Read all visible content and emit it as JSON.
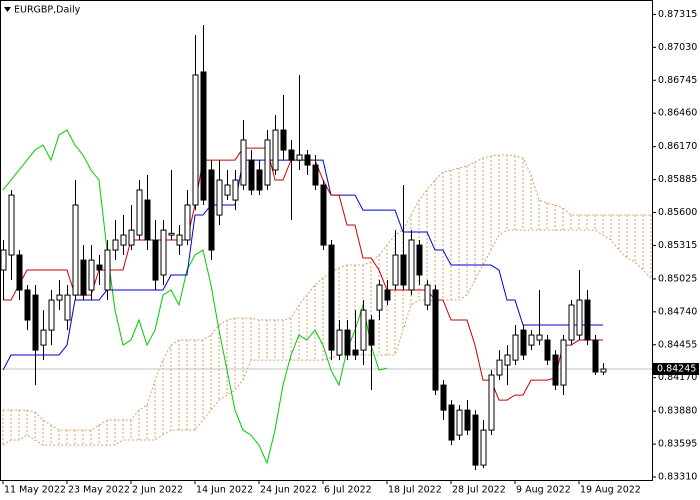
{
  "chart_data": {
    "type": "candlestick",
    "title": "EURGBP,Daily",
    "categories": [
      "11 May 2022",
      null,
      null,
      null,
      null,
      null,
      null,
      null,
      "23 May 2022",
      null,
      null,
      null,
      null,
      null,
      null,
      null,
      "2 Jun 2022",
      null,
      null,
      null,
      null,
      null,
      null,
      null,
      "14 Jun 2022",
      null,
      null,
      null,
      null,
      null,
      null,
      null,
      "24 Jun 2022",
      null,
      null,
      null,
      null,
      null,
      null,
      null,
      "6 Jul 2022",
      null,
      null,
      null,
      null,
      null,
      null,
      null,
      "18 Jul 2022",
      null,
      null,
      null,
      null,
      null,
      null,
      null,
      "28 Jul 2022",
      null,
      null,
      null,
      null,
      null,
      null,
      null,
      "9 Aug 2022",
      null,
      null,
      null,
      null,
      null,
      null,
      null,
      "19 Aug 2022",
      null,
      null,
      null,
      null,
      null,
      null,
      null,
      null,
      null
    ],
    "ohlc": {
      "open": [
        0.85102,
        0.85232,
        0.85232,
        0.84929,
        0.84885,
        0.84452,
        0.84582,
        0.84842,
        0.84669,
        0.84885,
        0.85188,
        0.84929,
        0.85145,
        0.84929,
        0.85275,
        0.85318,
        0.85318,
        0.85405,
        0.85708,
        0.85362,
        0.85059,
        0.85405,
        0.85318,
        0.85362,
        0.85665,
        0.86817,
        0.85968,
        0.85578,
        0.85751,
        0.85708,
        0.85838,
        0.86054,
        0.85968,
        0.85838,
        0.85968,
        0.86314,
        0.86141,
        0.86054,
        0.86098,
        0.86011,
        0.85838,
        0.85318,
        0.84366,
        0.84582,
        0.84409,
        0.84409,
        0.84669,
        0.84755,
        0.84929,
        0.84972,
        0.85232,
        0.84929,
        0.85318,
        0.84799,
        0.84929,
        0.84106,
        0.83933,
        0.83673,
        0.83889,
        0.83846,
        0.83413,
        0.83716,
        0.84193,
        0.84279,
        0.84322,
        0.84582,
        0.84452,
        0.84496,
        0.84496,
        0.84366,
        0.84106,
        0.84496,
        0.84539,
        0.84842,
        0.84496,
        0.84219,
        null,
        null,
        null,
        null,
        null,
        null
      ],
      "high": [
        0.85362,
        0.85795,
        0.85275,
        0.84972,
        0.84972,
        0.84755,
        0.84929,
        0.85015,
        0.84972,
        0.85881,
        0.85318,
        0.85318,
        0.85232,
        0.85362,
        0.85535,
        0.85578,
        0.85665,
        0.85881,
        0.85925,
        0.85535,
        0.85535,
        0.85968,
        0.85492,
        0.85795,
        0.87137,
        0.87224,
        0.86054,
        0.86054,
        0.85968,
        0.85968,
        0.86401,
        0.86141,
        0.86054,
        0.86314,
        0.86444,
        0.86617,
        0.86228,
        0.86791,
        0.86141,
        0.86098,
        0.85881,
        0.85362,
        0.84669,
        0.84669,
        0.84755,
        0.84842,
        0.84712,
        0.85015,
        0.85015,
        0.85448,
        0.85838,
        0.85448,
        0.85362,
        0.85015,
        0.84972,
        0.84149,
        0.83976,
        0.83933,
        0.83976,
        0.83889,
        0.83803,
        0.84236,
        0.84409,
        0.84452,
        0.84626,
        0.84626,
        0.84582,
        0.84929,
        0.84539,
        0.84409,
        0.84539,
        0.84842,
        0.85102,
        0.84929,
        0.84539,
        0.84296,
        null,
        null,
        null,
        null,
        null,
        null
      ],
      "low": [
        0.84842,
        0.85015,
        0.84842,
        0.84582,
        0.84106,
        0.84322,
        0.84452,
        0.84755,
        0.84582,
        0.84842,
        0.84842,
        0.84842,
        0.84972,
        0.84842,
        0.85188,
        0.85232,
        0.85275,
        0.85362,
        0.85275,
        0.84929,
        0.84972,
        0.85362,
        0.85232,
        0.85318,
        0.85621,
        0.85665,
        0.85188,
        0.85492,
        0.85708,
        0.85621,
        0.85795,
        0.85751,
        0.85751,
        0.85795,
        0.85925,
        0.86054,
        0.85535,
        0.85968,
        0.85925,
        0.85795,
        0.85275,
        0.84322,
        0.84322,
        0.84322,
        0.84322,
        0.84279,
        0.84063,
        0.84669,
        0.84799,
        0.84929,
        0.84929,
        0.84885,
        0.84972,
        0.84755,
        0.84019,
        0.83803,
        0.83586,
        0.8363,
        0.83673,
        0.8337,
        0.83387,
        0.83673,
        0.84149,
        0.84106,
        0.84279,
        0.84322,
        0.84409,
        0.84452,
        0.84279,
        0.84063,
        0.84019,
        0.84452,
        0.84496,
        0.84452,
        0.84193,
        0.84193,
        null,
        null,
        null,
        null,
        null,
        null
      ],
      "close": [
        0.85275,
        0.85751,
        0.84929,
        0.84669,
        0.84409,
        0.84582,
        0.84842,
        0.84885,
        0.84885,
        0.85665,
        0.84885,
        0.85188,
        0.85102,
        0.85275,
        0.85362,
        0.85405,
        0.85448,
        0.85795,
        0.85362,
        0.85015,
        0.85448,
        0.8542,
        0.85405,
        0.85665,
        0.86791,
        0.85708,
        0.85275,
        0.85881,
        0.85838,
        0.85881,
        0.86228,
        0.85795,
        0.85795,
        0.86228,
        0.86314,
        0.86141,
        0.86054,
        0.86098,
        0.86011,
        0.85838,
        0.85318,
        0.84409,
        0.84582,
        0.84366,
        0.84366,
        0.84755,
        0.84452,
        0.84972,
        0.84842,
        0.85232,
        0.84972,
        0.85362,
        0.85059,
        0.84972,
        0.84063,
        0.83889,
        0.8363,
        0.83889,
        0.83716,
        0.83413,
        0.83716,
        0.84193,
        0.84322,
        0.84366,
        0.84539,
        0.84366,
        0.84539,
        0.84539,
        0.84322,
        0.84106,
        0.84496,
        0.84799,
        0.84842,
        0.84496,
        0.84219,
        0.84245,
        null,
        null,
        null,
        null,
        null,
        null
      ]
    },
    "up_color": "#ffffff",
    "down_color": "#000000",
    "ichimoku": {
      "tenkan": {
        "color": "#cc0000",
        "values": [
          0.84842,
          0.84842,
          0.84972,
          0.85102,
          0.85102,
          0.85102,
          0.85102,
          0.85102,
          0.85102,
          0.84885,
          0.84885,
          0.84885,
          0.85102,
          0.85102,
          0.85102,
          0.85102,
          0.85362,
          0.85362,
          0.85362,
          0.85362,
          0.85362,
          0.85362,
          0.85362,
          0.85362,
          0.85665,
          0.86054,
          0.86054,
          0.86054,
          0.86054,
          0.86054,
          0.86158,
          0.86158,
          0.86158,
          0.86158,
          0.85881,
          0.85881,
          0.86054,
          0.86054,
          0.86054,
          0.86054,
          0.85881,
          0.85751,
          0.85751,
          0.85492,
          0.85492,
          0.85206,
          0.85206,
          0.85102,
          0.84929,
          0.84929,
          0.84929,
          0.84929,
          0.84929,
          0.84929,
          0.84842,
          0.84842,
          0.84669,
          0.84669,
          0.84669,
          0.84452,
          0.84149,
          0.84149,
          0.83976,
          0.83976,
          0.84019,
          0.84019,
          0.84149,
          0.84149,
          0.84149,
          0.84167,
          0.84452,
          0.84452,
          0.84496,
          0.84496,
          0.84496,
          0.84496,
          null,
          null,
          null,
          null,
          null,
          null
        ]
      },
      "kijun": {
        "color": "#0000cc",
        "values": [
          0.84236,
          0.84366,
          0.84366,
          0.84366,
          0.84366,
          0.84366,
          0.84366,
          0.84366,
          0.84452,
          0.84842,
          0.84842,
          0.84842,
          0.84842,
          0.84929,
          0.84929,
          0.84929,
          0.84929,
          0.84929,
          0.84929,
          0.84929,
          0.84929,
          0.85059,
          0.85059,
          0.85059,
          0.85578,
          0.85578,
          0.85665,
          0.85665,
          0.85665,
          0.85665,
          0.86054,
          0.86054,
          0.86054,
          0.86054,
          0.86054,
          0.86054,
          0.86054,
          0.86054,
          0.86054,
          0.86054,
          0.86054,
          0.85751,
          0.85751,
          0.85751,
          0.85751,
          0.85621,
          0.85621,
          0.85621,
          0.85621,
          0.85621,
          0.85431,
          0.85431,
          0.85431,
          0.85431,
          0.85275,
          0.85275,
          0.85145,
          0.85145,
          0.85145,
          0.85145,
          0.85145,
          0.85145,
          0.85102,
          0.84842,
          0.84842,
          0.84626,
          0.84626,
          0.84626,
          0.84626,
          0.84626,
          0.84626,
          0.84626,
          0.84626,
          0.84626,
          0.84626,
          0.84626,
          null,
          null,
          null,
          null,
          null,
          null
        ]
      },
      "chikou": {
        "color": "#00cc00",
        "values": [
          0.85795,
          0.85881,
          0.85968,
          0.86054,
          0.86141,
          0.86184,
          0.86054,
          0.86271,
          0.86314,
          0.86184,
          0.86098,
          0.85968,
          0.85881,
          0.85275,
          0.84755,
          0.84452,
          0.84496,
          0.84669,
          0.84452,
          0.84582,
          0.84885,
          0.84929,
          0.84799,
          0.85102,
          0.85232,
          0.85275,
          0.84972,
          0.84582,
          0.84236,
          0.83889,
          0.83716,
          0.83673,
          0.83586,
          0.8343,
          0.83716,
          0.84106,
          0.84366,
          0.84539,
          0.84496,
          0.84582,
          0.84452,
          0.84236,
          0.84106,
          0.84409,
          0.84582,
          0.84799,
          0.84452,
          0.84236,
          0.84253,
          null,
          null,
          null,
          null,
          null,
          null,
          null,
          null,
          null,
          null,
          null,
          null,
          null,
          null,
          null,
          null,
          null,
          null,
          null,
          null,
          null,
          null,
          null,
          null,
          null,
          null,
          null,
          null,
          null,
          null,
          null,
          null,
          null
        ]
      },
      "cloud_color": "#d9a066",
      "span_a": [
        0.83889,
        0.83889,
        0.83889,
        0.83889,
        0.83872,
        0.83803,
        0.8376,
        0.83716,
        0.83716,
        0.83716,
        0.83716,
        0.83716,
        0.8376,
        0.83803,
        0.83803,
        0.83803,
        0.83803,
        0.83889,
        0.83933,
        0.84149,
        0.84322,
        0.84452,
        0.84496,
        0.84496,
        0.84496,
        0.84496,
        0.84539,
        0.84626,
        0.84669,
        0.84686,
        0.84686,
        0.84686,
        0.84669,
        0.84669,
        0.84669,
        0.84669,
        0.84686,
        0.84799,
        0.84885,
        0.84972,
        0.85033,
        0.85085,
        0.85119,
        0.85145,
        0.85145,
        0.85145,
        0.85171,
        0.85232,
        0.85318,
        0.85405,
        0.85448,
        0.85578,
        0.85708,
        0.85795,
        0.85881,
        0.85951,
        0.85968,
        0.85985,
        0.86002,
        0.86037,
        0.86072,
        0.86089,
        0.86098,
        0.86098,
        0.86089,
        0.86072,
        0.85925,
        0.85708,
        0.85682,
        0.85665,
        0.85639,
        0.85578,
        0.85578,
        0.85578,
        0.85578,
        0.85578,
        0.85578,
        0.85578,
        0.85578,
        0.85578,
        0.85578,
        0.85578
      ],
      "span_b": [
        0.83586,
        0.8363,
        0.8363,
        0.83673,
        0.8363,
        0.83586,
        0.83586,
        0.83586,
        0.83586,
        0.83586,
        0.83586,
        0.83586,
        0.83586,
        0.83586,
        0.83586,
        0.8363,
        0.8363,
        0.8363,
        0.8363,
        0.8363,
        0.83673,
        0.83716,
        0.83716,
        0.83716,
        0.83716,
        0.83803,
        0.83889,
        0.83976,
        0.84019,
        0.84063,
        0.84149,
        0.84322,
        0.84322,
        0.84322,
        0.84322,
        0.84322,
        0.84322,
        0.84322,
        0.84322,
        0.84322,
        0.84322,
        0.8434,
        0.84366,
        0.84366,
        0.84366,
        0.84366,
        0.84366,
        0.84366,
        0.84366,
        0.84366,
        0.84582,
        0.84799,
        0.84842,
        0.84842,
        0.84842,
        0.84842,
        0.84842,
        0.84842,
        0.84885,
        0.85015,
        0.85145,
        0.85275,
        0.85405,
        0.85448,
        0.85448,
        0.85448,
        0.85448,
        0.85448,
        0.85448,
        0.85448,
        0.85448,
        0.85448,
        0.85448,
        0.85448,
        0.85448,
        0.85405,
        0.85362,
        0.85275,
        0.85206,
        0.85171,
        0.85102,
        0.85033
      ]
    },
    "current_price": 0.84245,
    "ylim": [
      0.83284,
      0.8744
    ],
    "yticks": [
      0.87315,
      {
        "value": 0.8703,
        "label": "0.87030"
      },
      0.86745,
      {
        "value": 0.8646,
        "label": "0.86460"
      },
      {
        "value": 0.8617,
        "label": "0.86170"
      },
      0.85885,
      {
        "value": 0.856,
        "label": "0.85600"
      },
      0.85315,
      0.85025,
      {
        "value": 0.8474,
        "label": "0.84740"
      },
      0.84455,
      {
        "value": 0.8417,
        "label": "0.84170"
      },
      {
        "value": 0.8388,
        "label": "0.83880"
      },
      0.83595,
      {
        "value": 0.8331,
        "label": "0.83310"
      }
    ]
  }
}
